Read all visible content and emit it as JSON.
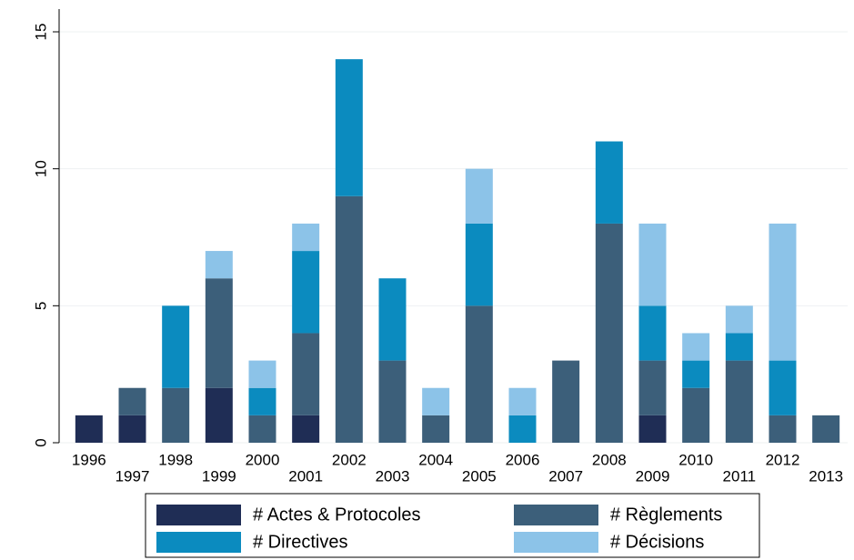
{
  "chart_data": {
    "type": "stacked_bar",
    "categories": [
      "1996",
      "1997",
      "1998",
      "1999",
      "2000",
      "2001",
      "2002",
      "2003",
      "2004",
      "2005",
      "2006",
      "2007",
      "2008",
      "2009",
      "2010",
      "2011",
      "2012",
      "2013"
    ],
    "series": [
      {
        "name": "# Actes & Protocoles",
        "color": "#1f2d55",
        "values": [
          1,
          1,
          0,
          2,
          0,
          1,
          0,
          0,
          0,
          0,
          0,
          0,
          0,
          1,
          0,
          0,
          0,
          0
        ]
      },
      {
        "name": "# Règlements",
        "color": "#3c5f7a",
        "values": [
          0,
          1,
          2,
          4,
          1,
          3,
          9,
          3,
          1,
          5,
          0,
          3,
          8,
          2,
          2,
          3,
          1,
          1
        ]
      },
      {
        "name": "# Directives",
        "color": "#0b8bbf",
        "values": [
          0,
          0,
          3,
          0,
          1,
          3,
          5,
          3,
          0,
          3,
          1,
          0,
          3,
          2,
          1,
          1,
          2,
          0
        ]
      },
      {
        "name": "# Décisions",
        "color": "#8cc3e8",
        "values": [
          0,
          0,
          0,
          1,
          1,
          1,
          0,
          0,
          1,
          2,
          1,
          0,
          0,
          3,
          1,
          1,
          5,
          0
        ]
      }
    ],
    "ylim": [
      0,
      15
    ],
    "yticks": [
      0,
      5,
      10,
      15
    ],
    "grid": true,
    "legend": "bottom"
  }
}
